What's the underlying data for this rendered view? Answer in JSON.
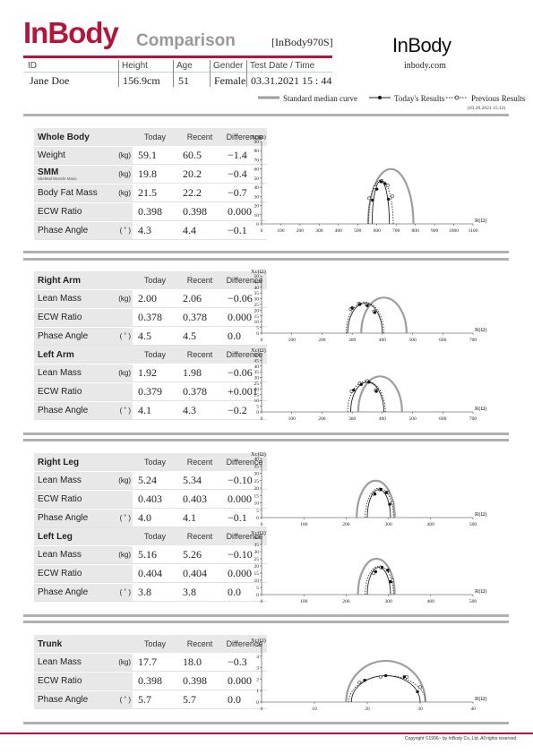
{
  "header": {
    "brand": "InBody",
    "subtitle": "Comparison",
    "model": "[InBody970S]",
    "right_logo": "InBody",
    "url": "inbody.com"
  },
  "info": {
    "id_label": "ID",
    "id_value": "Jane Doe",
    "height_label": "Height",
    "height_value": "156.9cm",
    "age_label": "Age",
    "age_value": "51",
    "gender_label": "Gender",
    "gender_value": "Female",
    "date_label": "Test Date / Time",
    "date_value": "03.31.2021 15 : 44"
  },
  "legend": {
    "median": "Standard median curve",
    "today": "Today's Results",
    "previous": "Previous Results",
    "previous_date": "(03.20.2021 15:12)"
  },
  "columns": {
    "today": "Today",
    "recent": "Recent",
    "difference": "Difference"
  },
  "sections": {
    "whole_body": {
      "title": "Whole Body",
      "rows": [
        {
          "name": "Weight",
          "unit": "(kg)",
          "today": "59.1",
          "recent": "60.5",
          "diff": "−1.4"
        },
        {
          "name": "SMM",
          "sub": "Skeletal Muscle Mass",
          "unit": "(kg)",
          "today": "19.8",
          "recent": "20.2",
          "diff": "−0.4"
        },
        {
          "name": "Body Fat Mass",
          "unit": "(kg)",
          "today": "21.5",
          "recent": "22.2",
          "diff": "−0.7"
        },
        {
          "name": "ECW Ratio",
          "unit": "",
          "today": "0.398",
          "recent": "0.398",
          "diff": "0.000"
        },
        {
          "name": "Phase Angle",
          "unit": "( ˚ )",
          "today": "4.3",
          "recent": "4.4",
          "diff": "−0.1"
        }
      ]
    },
    "right_arm": {
      "title": "Right Arm",
      "rows": [
        {
          "name": "Lean Mass",
          "unit": "(kg)",
          "today": "2.00",
          "recent": "2.06",
          "diff": "−0.06"
        },
        {
          "name": "ECW Ratio",
          "unit": "",
          "today": "0.378",
          "recent": "0.378",
          "diff": "0.000"
        },
        {
          "name": "Phase Angle",
          "unit": "( ˚ )",
          "today": "4.5",
          "recent": "4.5",
          "diff": "0.0"
        }
      ]
    },
    "left_arm": {
      "title": "Left Arm",
      "rows": [
        {
          "name": "Lean Mass",
          "unit": "(kg)",
          "today": "1.92",
          "recent": "1.98",
          "diff": "−0.06"
        },
        {
          "name": "ECW Ratio",
          "unit": "",
          "today": "0.379",
          "recent": "0.378",
          "diff": "+0.001"
        },
        {
          "name": "Phase Angle",
          "unit": "( ˚ )",
          "today": "4.1",
          "recent": "4.3",
          "diff": "−0.2"
        }
      ]
    },
    "right_leg": {
      "title": "Right Leg",
      "rows": [
        {
          "name": "Lean Mass",
          "unit": "(kg)",
          "today": "5.24",
          "recent": "5.34",
          "diff": "−0.10"
        },
        {
          "name": "ECW Ratio",
          "unit": "",
          "today": "0.403",
          "recent": "0.403",
          "diff": "0.000"
        },
        {
          "name": "Phase Angle",
          "unit": "( ˚ )",
          "today": "4.0",
          "recent": "4.1",
          "diff": "−0.1"
        }
      ]
    },
    "left_leg": {
      "title": "Left Leg",
      "rows": [
        {
          "name": "Lean Mass",
          "unit": "(kg)",
          "today": "5.16",
          "recent": "5.26",
          "diff": "−0.10"
        },
        {
          "name": "ECW Ratio",
          "unit": "",
          "today": "0.404",
          "recent": "0.404",
          "diff": "0.000"
        },
        {
          "name": "Phase Angle",
          "unit": "( ˚ )",
          "today": "3.8",
          "recent": "3.8",
          "diff": "0.0"
        }
      ]
    },
    "trunk": {
      "title": "Trunk",
      "rows": [
        {
          "name": "Lean Mass",
          "unit": "(kg)",
          "today": "17.7",
          "recent": "18.0",
          "diff": "−0.3"
        },
        {
          "name": "ECW Ratio",
          "unit": "",
          "today": "0.398",
          "recent": "0.398",
          "diff": "0.000"
        },
        {
          "name": "Phase Angle",
          "unit": "( ˚ )",
          "today": "5.7",
          "recent": "5.7",
          "diff": "0.0"
        }
      ]
    }
  },
  "chart_data": [
    {
      "id": "whole_body",
      "type": "line",
      "ylabel": "Xc(Ω)",
      "xlabel": "R(Ω)",
      "xlim": [
        0,
        1100
      ],
      "ylim": [
        0,
        90
      ],
      "xticks": [
        0,
        100,
        200,
        300,
        400,
        500,
        600,
        700,
        800,
        900,
        1000,
        1100
      ],
      "yticks": [
        0,
        10,
        20,
        30,
        40,
        50,
        60,
        70,
        80,
        90
      ],
      "median": {
        "r_min": 555,
        "r_max": 790,
        "xc_max": 60
      },
      "today": {
        "r_min": 575,
        "r_max": 665,
        "xc_max": 47,
        "points": [
          [
            577,
            26
          ],
          [
            600,
            38
          ],
          [
            622,
            46
          ],
          [
            642,
            44
          ],
          [
            660,
            27
          ]
        ]
      },
      "previous": {
        "r_min": 555,
        "r_max": 685,
        "xc_max": 48,
        "points": [
          [
            560,
            28
          ],
          [
            590,
            40
          ],
          [
            625,
            47
          ],
          [
            656,
            42
          ],
          [
            680,
            30
          ]
        ]
      }
    },
    {
      "id": "right_arm",
      "type": "line",
      "ylabel": "Xc(Ω)",
      "xlabel": "R(Ω)",
      "xlim": [
        0,
        700
      ],
      "ylim": [
        0,
        50
      ],
      "xticks": [
        0,
        100,
        200,
        300,
        400,
        500,
        600,
        700
      ],
      "yticks": [
        0,
        5,
        10,
        15,
        20,
        25,
        30,
        35,
        40,
        45,
        50
      ],
      "median": {
        "r_min": 330,
        "r_max": 480,
        "xc_max": 31
      },
      "today": {
        "r_min": 285,
        "r_max": 400,
        "xc_max": 26,
        "points": [
          [
            300,
            22
          ],
          [
            325,
            25
          ],
          [
            350,
            24
          ],
          [
            375,
            18
          ]
        ]
      },
      "previous": {
        "r_min": 280,
        "r_max": 405,
        "xc_max": 27,
        "points": [
          [
            295,
            21
          ],
          [
            322,
            26
          ],
          [
            348,
            25
          ],
          [
            372,
            19
          ]
        ]
      }
    },
    {
      "id": "left_arm",
      "type": "line",
      "ylabel": "Xc(Ω)",
      "xlabel": "R(Ω)",
      "xlim": [
        0,
        700
      ],
      "ylim": [
        0,
        50
      ],
      "xticks": [
        0,
        100,
        200,
        300,
        400,
        500,
        600,
        700
      ],
      "yticks": [
        0,
        5,
        10,
        15,
        20,
        25,
        30,
        35,
        40,
        45,
        50
      ],
      "median": {
        "r_min": 320,
        "r_max": 465,
        "xc_max": 31
      },
      "today": {
        "r_min": 295,
        "r_max": 405,
        "xc_max": 26,
        "points": [
          [
            305,
            19
          ],
          [
            330,
            24
          ],
          [
            355,
            26
          ],
          [
            380,
            18
          ]
        ]
      },
      "previous": {
        "r_min": 285,
        "r_max": 410,
        "xc_max": 27,
        "points": [
          [
            298,
            18
          ],
          [
            325,
            25
          ],
          [
            350,
            27
          ],
          [
            378,
            19
          ]
        ]
      }
    },
    {
      "id": "right_leg",
      "type": "line",
      "ylabel": "Xc(Ω)",
      "xlabel": "R(Ω)",
      "xlim": [
        0,
        500
      ],
      "ylim": [
        0,
        40
      ],
      "xticks": [
        0,
        100,
        200,
        300,
        400,
        500
      ],
      "yticks": [
        0,
        5,
        10,
        15,
        20,
        25,
        30,
        35,
        40
      ],
      "median": {
        "r_min": 225,
        "r_max": 315,
        "xc_max": 25
      },
      "today": {
        "r_min": 250,
        "r_max": 305,
        "xc_max": 19,
        "points": [
          [
            268,
            16
          ],
          [
            282,
            19
          ],
          [
            295,
            17
          ],
          [
            303,
            9
          ]
        ]
      },
      "previous": {
        "r_min": 245,
        "r_max": 312,
        "xc_max": 20,
        "points": [
          [
            265,
            16
          ],
          [
            280,
            19
          ],
          [
            298,
            17
          ],
          [
            310,
            10
          ]
        ]
      }
    },
    {
      "id": "left_leg",
      "type": "line",
      "ylabel": "Xc(Ω)",
      "xlabel": "R(Ω)",
      "xlim": [
        0,
        500
      ],
      "ylim": [
        0,
        40
      ],
      "xticks": [
        0,
        100,
        200,
        300,
        400,
        500
      ],
      "yticks": [
        0,
        5,
        10,
        15,
        20,
        25,
        30,
        35,
        40
      ],
      "median": {
        "r_min": 228,
        "r_max": 315,
        "xc_max": 25
      },
      "today": {
        "r_min": 250,
        "r_max": 305,
        "xc_max": 19,
        "points": [
          [
            270,
            16
          ],
          [
            285,
            19
          ],
          [
            298,
            17
          ],
          [
            305,
            9
          ]
        ]
      },
      "previous": {
        "r_min": 245,
        "r_max": 312,
        "xc_max": 20,
        "points": [
          [
            265,
            15
          ],
          [
            282,
            19
          ],
          [
            300,
            17
          ],
          [
            310,
            10
          ]
        ]
      }
    },
    {
      "id": "trunk",
      "type": "line",
      "ylabel": "Xc(Ω)",
      "xlabel": "R(Ω)",
      "xlim": [
        0,
        40
      ],
      "ylim": [
        0,
        5
      ],
      "xticks": [
        0,
        10,
        20,
        30,
        40
      ],
      "yticks": [
        0,
        1,
        2,
        3,
        4,
        5
      ],
      "median": {
        "r_min": 16,
        "r_max": 31,
        "xc_max": 3.6
      },
      "today": {
        "r_min": 17,
        "r_max": 30,
        "xc_max": 2.3,
        "points": [
          [
            19.5,
            1.9
          ],
          [
            23.5,
            2.3
          ],
          [
            27,
            2.2
          ],
          [
            29.5,
            0.9
          ]
        ]
      },
      "previous": {
        "r_min": 16.5,
        "r_max": 31,
        "xc_max": 2.3,
        "points": [
          [
            18.5,
            1.7
          ],
          [
            22.5,
            2.2
          ],
          [
            27.5,
            2.2
          ],
          [
            30,
            1.3
          ]
        ]
      }
    }
  ],
  "footer": {
    "copyright": "Copyright ©1996~ by InBody Co.,Ltd. All rights reserved."
  },
  "colors": {
    "brand": "#b3163a",
    "median": "#9e9e9e",
    "header_bg": "#e8e8e8"
  }
}
